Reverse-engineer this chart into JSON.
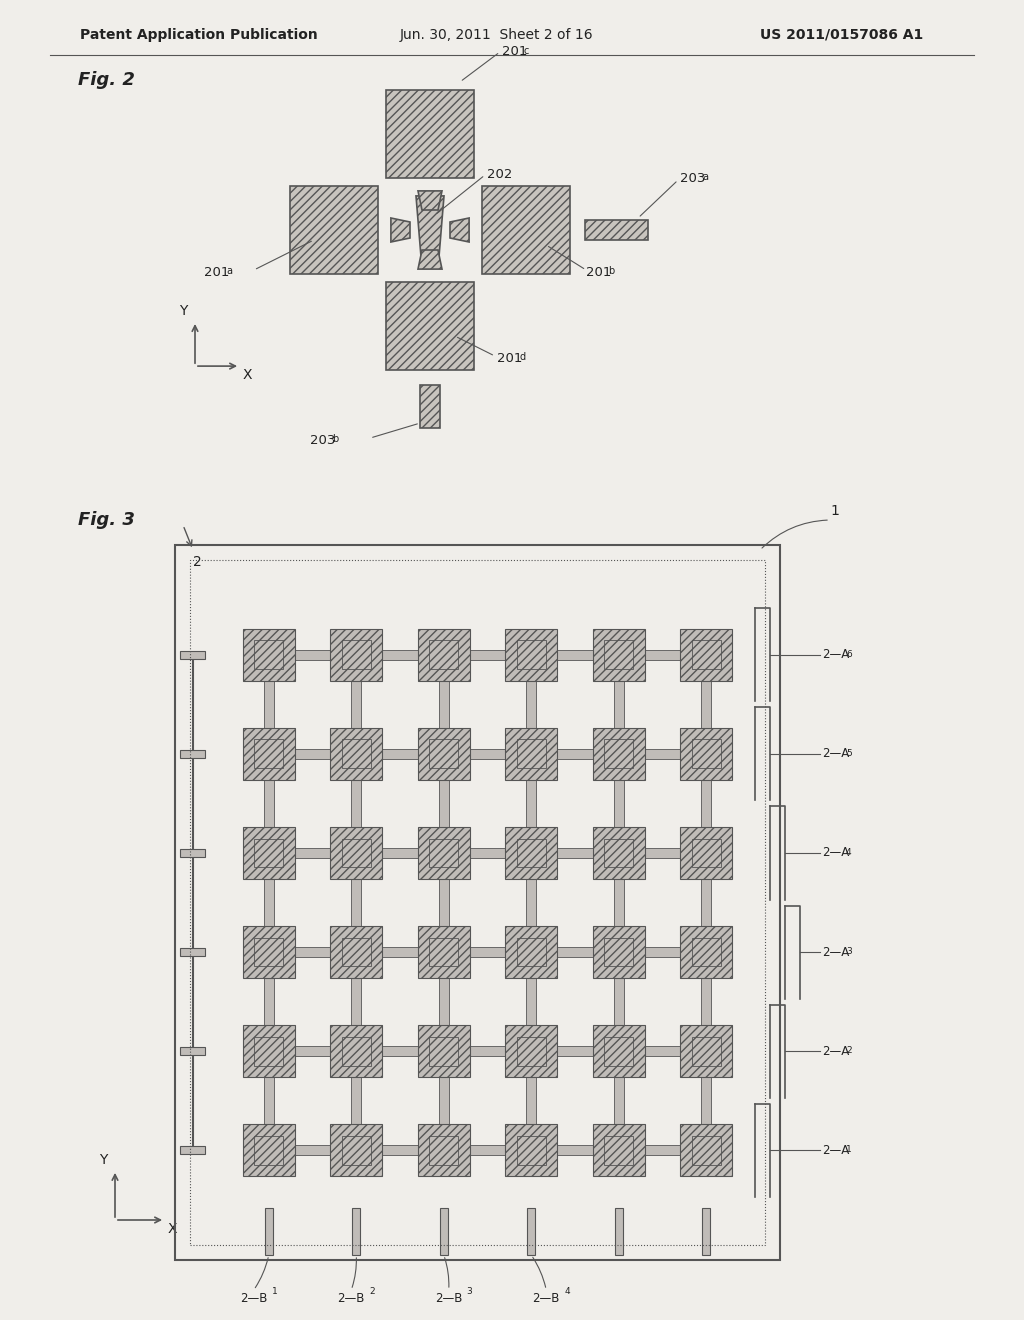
{
  "bg_color": "#f0eeea",
  "header_text1": "Patent Application Publication",
  "header_text2": "Jun. 30, 2011  Sheet 2 of 16",
  "header_text3": "US 2011/0157086 A1",
  "fig2_label": "Fig. 2",
  "fig3_label": "Fig. 3",
  "line_color": "#555555",
  "hatch_color": "#888888",
  "text_color": "#222222"
}
